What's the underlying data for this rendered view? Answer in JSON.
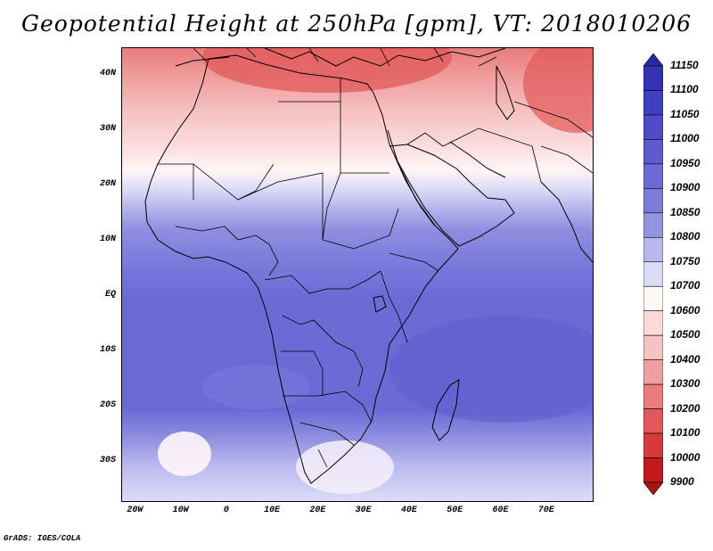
{
  "title": "Geopotential Height at 250hPa [gpm], VT: 2018010206",
  "footer": "GrADS: IGES/COLA",
  "map": {
    "projection": "latlon",
    "lon_range": [
      -23,
      80
    ],
    "lat_range": [
      -37,
      45
    ],
    "lat_labels": [
      {
        "text": "40N",
        "lat": 40
      },
      {
        "text": "30N",
        "lat": 30
      },
      {
        "text": "20N",
        "lat": 20
      },
      {
        "text": "10N",
        "lat": 10
      },
      {
        "text": "EQ",
        "lat": 0
      },
      {
        "text": "10S",
        "lat": -10
      },
      {
        "text": "20S",
        "lat": -20
      },
      {
        "text": "30S",
        "lat": -30
      }
    ],
    "lon_labels": [
      {
        "text": "20W",
        "lon": -20
      },
      {
        "text": "10W",
        "lon": -10
      },
      {
        "text": "0",
        "lon": 0
      },
      {
        "text": "10E",
        "lon": 10
      },
      {
        "text": "20E",
        "lon": 20
      },
      {
        "text": "30E",
        "lon": 30
      },
      {
        "text": "40E",
        "lon": 40
      },
      {
        "text": "50E",
        "lon": 50
      },
      {
        "text": "60E",
        "lon": 60
      },
      {
        "text": "70E",
        "lon": 70
      }
    ]
  },
  "colorbar": {
    "levels": [
      "11150",
      "11100",
      "11050",
      "11000",
      "10950",
      "10900",
      "10850",
      "10800",
      "10750",
      "10700",
      "10600",
      "10500",
      "10400",
      "10300",
      "10200",
      "10100",
      "10000",
      "9900"
    ],
    "colors": [
      "#2a2aa5",
      "#3333b4",
      "#3f3fbf",
      "#4c4cc8",
      "#5c5cd0",
      "#6b6bd6",
      "#7b7bdc",
      "#9494e3",
      "#b8b8ef",
      "#dcdcf7",
      "#fff6f6",
      "#fbdada",
      "#f6c2c2",
      "#f0a0a0",
      "#ea7c7c",
      "#e25858",
      "#d63b3b",
      "#c21a1a",
      "#a81313"
    ]
  }
}
